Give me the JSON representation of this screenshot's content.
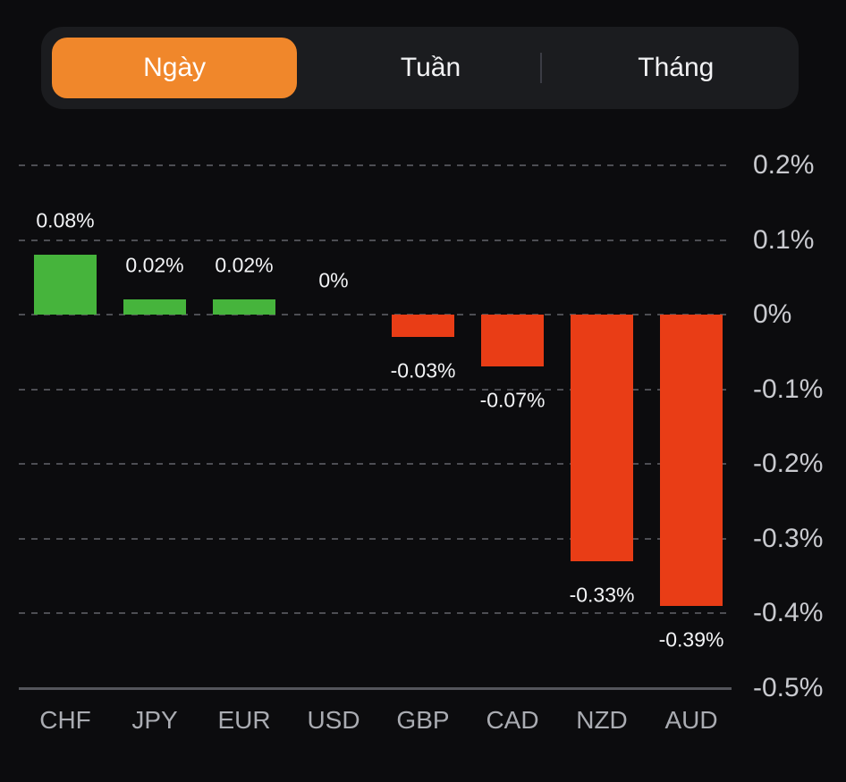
{
  "tabs": {
    "items": [
      {
        "label": "Ngày",
        "selected": true
      },
      {
        "label": "Tuần",
        "selected": false
      },
      {
        "label": "Tháng",
        "selected": false
      }
    ],
    "selected_color": "#f0872b"
  },
  "chart_data": {
    "type": "bar",
    "title": "",
    "xlabel": "",
    "ylabel": "",
    "categories": [
      "CHF",
      "JPY",
      "EUR",
      "USD",
      "GBP",
      "CAD",
      "NZD",
      "AUD"
    ],
    "values": [
      0.08,
      0.02,
      0.02,
      0,
      -0.03,
      -0.07,
      -0.33,
      -0.39
    ],
    "value_labels": [
      "0.08%",
      "0.02%",
      "0.02%",
      "0%",
      "-0.03%",
      "-0.07%",
      "-0.33%",
      "-0.39%"
    ],
    "y_ticks": [
      0.2,
      0.1,
      0,
      -0.1,
      -0.2,
      -0.3,
      -0.4,
      -0.5
    ],
    "y_tick_labels": [
      "0.2%",
      "0.1%",
      "0%",
      "-0.1%",
      "-0.2%",
      "-0.3%",
      "-0.4%",
      "-0.5%"
    ],
    "ylim": [
      -0.5,
      0.25
    ],
    "grid": "dashed-horizontal",
    "legend": "none",
    "positive_color": "#46b43c",
    "negative_color": "#e93d16",
    "background_color": "#0c0c0e"
  }
}
